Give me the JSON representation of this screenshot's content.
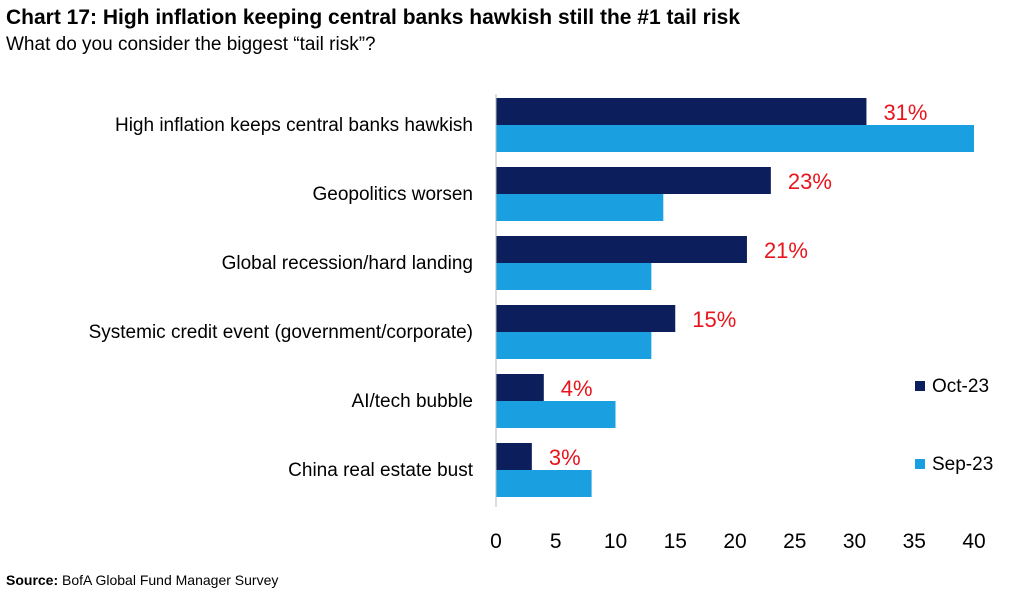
{
  "title": "Chart 17: High inflation keeping central banks hawkish still the #1 tail risk",
  "subtitle": "What do you consider the biggest “tail risk”?",
  "source": {
    "label": "Source:",
    "text": "BofA Global Fund Manager Survey"
  },
  "chart_data": {
    "type": "bar",
    "orientation": "horizontal",
    "categories": [
      "High inflation keeps central banks hawkish",
      "Geopolitics worsen",
      "Global recession/hard landing",
      "Systemic credit event (government/corporate)",
      "AI/tech bubble",
      "China real estate bust"
    ],
    "series": [
      {
        "name": "Oct-23",
        "color": "#0c1e5b",
        "values": [
          31,
          23,
          21,
          15,
          4,
          3
        ]
      },
      {
        "name": "Sep-23",
        "color": "#1aa0e0",
        "values": [
          40,
          14,
          13,
          13,
          10,
          8
        ]
      }
    ],
    "data_labels": [
      "31%",
      "23%",
      "21%",
      "15%",
      "4%",
      "3%"
    ],
    "data_label_color": "#e8141c",
    "xlim": [
      0,
      40
    ],
    "xticks": [
      0,
      5,
      10,
      15,
      20,
      25,
      30,
      35,
      40
    ],
    "grid": false,
    "legend_position": "right"
  }
}
